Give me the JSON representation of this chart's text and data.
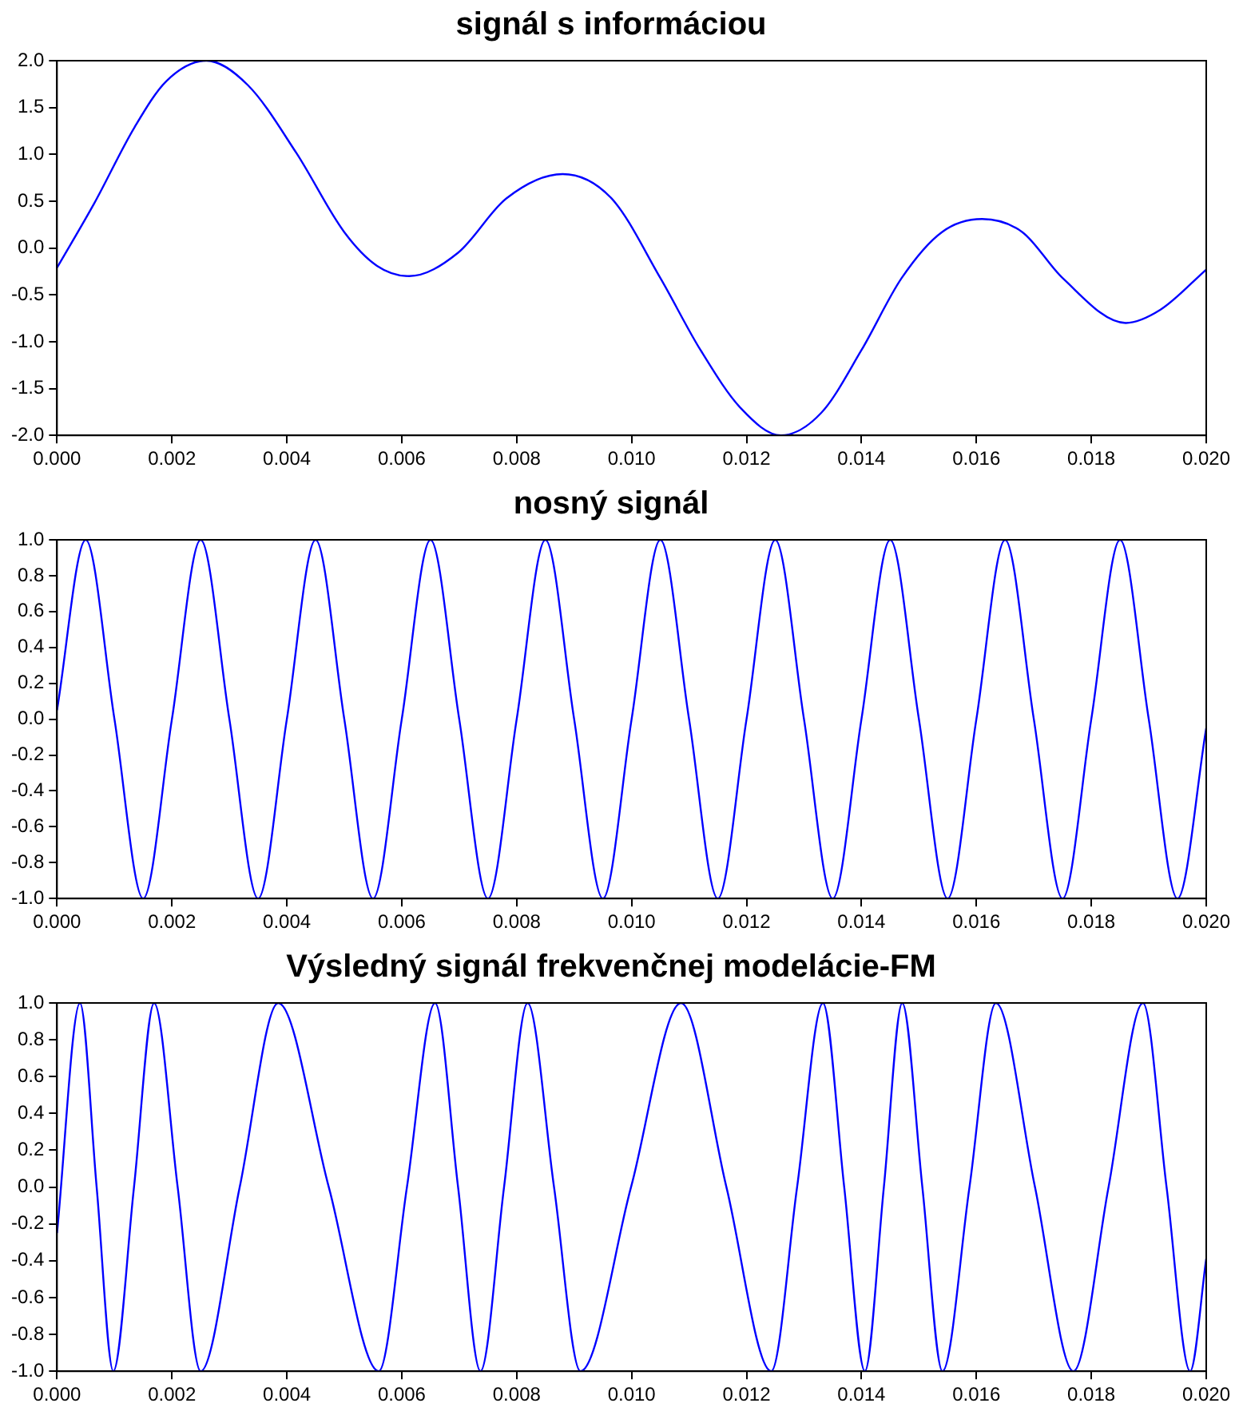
{
  "chart_data": [
    {
      "type": "line",
      "title": "signál s informáciou",
      "color": "#0000ff",
      "marker": "none",
      "grid": false,
      "x": [
        0,
        0.00065,
        0.00135,
        0.0019,
        0.0026,
        0.00332,
        0.00416,
        0.005,
        0.00557,
        0.00613,
        0.00698,
        0.00782,
        0.0088,
        0.00965,
        0.0105,
        0.0112,
        0.0119,
        0.0126,
        0.0133,
        0.014,
        0.0147,
        0.0154,
        0.0161,
        0.0168,
        0.0175,
        0.0186,
        0.0192,
        0.02
      ],
      "values": [
        -0.21,
        0.48,
        1.29,
        1.78,
        2.0,
        1.74,
        1.02,
        0.17,
        -0.19,
        -0.3,
        -0.05,
        0.53,
        0.79,
        0.53,
        -0.32,
        -1.09,
        -1.71,
        -2.0,
        -1.76,
        -1.09,
        -0.32,
        0.17,
        0.31,
        0.17,
        -0.32,
        -0.8,
        -0.66,
        -0.23
      ],
      "xlim": [
        0,
        0.02
      ],
      "ylim": [
        -2,
        2
      ],
      "xticks": [
        {
          "value": 0,
          "label": "0.000"
        },
        {
          "value": 0.002,
          "label": "0.002"
        },
        {
          "value": 0.004,
          "label": "0.004"
        },
        {
          "value": 0.006,
          "label": "0.006"
        },
        {
          "value": 0.008,
          "label": "0.008"
        },
        {
          "value": 0.01,
          "label": "0.010"
        },
        {
          "value": 0.012,
          "label": "0.012"
        },
        {
          "value": 0.014,
          "label": "0.014"
        },
        {
          "value": 0.016,
          "label": "0.016"
        },
        {
          "value": 0.018,
          "label": "0.018"
        },
        {
          "value": 0.02,
          "label": "0.020"
        }
      ],
      "yticks": [
        {
          "value": -2,
          "label": "-2.0"
        },
        -1.5,
        {
          "value": -1,
          "label": "-1.0"
        },
        -0.5,
        {
          "value": 0,
          "label": "0.0"
        },
        0.5,
        {
          "value": 1,
          "label": "1.0"
        },
        1.5,
        {
          "value": 2,
          "label": "2.0"
        }
      ]
    },
    {
      "type": "line",
      "title": "nosný signál",
      "color": "#0000ff",
      "marker": "none",
      "grid": false,
      "x": [
        0,
        0.0005,
        0.001,
        0.0015,
        0.002,
        0.0025,
        0.003,
        0.0035,
        0.004,
        0.0045,
        0.005,
        0.0055,
        0.006,
        0.0065,
        0.007,
        0.0075,
        0.008,
        0.0085,
        0.009,
        0.0095,
        0.01,
        0.0105,
        0.011,
        0.0115,
        0.012,
        0.0125,
        0.013,
        0.0135,
        0.014,
        0.0145,
        0.015,
        0.0155,
        0.016,
        0.0165,
        0.017,
        0.0175,
        0.018,
        0.0185,
        0.019,
        0.0195,
        0.02
      ],
      "values": [
        0.05,
        1,
        0,
        -1,
        0,
        1,
        0,
        -1,
        0,
        1,
        0,
        -1,
        0,
        1,
        0,
        -1,
        0,
        1,
        0,
        -1,
        0,
        1,
        0,
        -1,
        0,
        1,
        0,
        -1,
        0,
        1,
        0,
        -1,
        0,
        1,
        0,
        -1,
        0,
        1,
        0,
        -1,
        -0.05
      ],
      "xlim": [
        0,
        0.02
      ],
      "ylim": [
        -1,
        1
      ],
      "xticks": [
        {
          "value": 0,
          "label": "0.000"
        },
        {
          "value": 0.002,
          "label": "0.002"
        },
        {
          "value": 0.004,
          "label": "0.004"
        },
        {
          "value": 0.006,
          "label": "0.006"
        },
        {
          "value": 0.008,
          "label": "0.008"
        },
        {
          "value": 0.01,
          "label": "0.010"
        },
        {
          "value": 0.012,
          "label": "0.012"
        },
        {
          "value": 0.014,
          "label": "0.014"
        },
        {
          "value": 0.016,
          "label": "0.016"
        },
        {
          "value": 0.018,
          "label": "0.018"
        },
        {
          "value": 0.02,
          "label": "0.020"
        }
      ],
      "yticks": [
        {
          "value": -1,
          "label": "-1.0"
        },
        -0.8,
        -0.6,
        -0.4,
        -0.2,
        {
          "value": 0,
          "label": "0.0"
        },
        0.2,
        0.4,
        0.6,
        0.8,
        {
          "value": 1,
          "label": "1.0"
        }
      ]
    },
    {
      "type": "line",
      "title": "Výsledný signál frekvenčnej modelácie-FM",
      "color": "#0000ff",
      "marker": "none",
      "grid": false,
      "x": [
        0,
        0.0004,
        0.00069,
        0.00098,
        0.00134,
        0.00169,
        0.0021,
        0.0025,
        0.00318,
        0.00385,
        0.00473,
        0.0056,
        0.00609,
        0.00658,
        0.00698,
        0.00737,
        0.00778,
        0.00819,
        0.00865,
        0.00911,
        0.00999,
        0.01086,
        0.01165,
        0.01243,
        0.01288,
        0.01333,
        0.0137,
        0.01406,
        0.01439,
        0.01471,
        0.01506,
        0.01541,
        0.01588,
        0.01634,
        0.01702,
        0.01769,
        0.0183,
        0.0189,
        0.01931,
        0.01972,
        0.02
      ],
      "values": [
        -0.25,
        1,
        0,
        -1,
        0,
        1,
        0,
        -1,
        0,
        1,
        0,
        -1,
        0,
        1,
        0,
        -1,
        0,
        1,
        0,
        -1,
        0,
        1,
        0,
        -1,
        0,
        1,
        0,
        -1,
        0,
        1,
        0,
        -1,
        0,
        1,
        0,
        -1,
        0,
        1,
        0,
        -1,
        -0.39
      ],
      "xlim": [
        0,
        0.02
      ],
      "ylim": [
        -1,
        1
      ],
      "xticks": [
        {
          "value": 0,
          "label": "0.000"
        },
        {
          "value": 0.002,
          "label": "0.002"
        },
        {
          "value": 0.004,
          "label": "0.004"
        },
        {
          "value": 0.006,
          "label": "0.006"
        },
        {
          "value": 0.008,
          "label": "0.008"
        },
        {
          "value": 0.01,
          "label": "0.010"
        },
        {
          "value": 0.012,
          "label": "0.012"
        },
        {
          "value": 0.014,
          "label": "0.014"
        },
        {
          "value": 0.016,
          "label": "0.016"
        },
        {
          "value": 0.018,
          "label": "0.018"
        },
        {
          "value": 0.02,
          "label": "0.020"
        }
      ],
      "yticks": [
        {
          "value": -1,
          "label": "-1.0"
        },
        -0.8,
        -0.6,
        -0.4,
        -0.2,
        {
          "value": 0,
          "label": "0.0"
        },
        0.2,
        0.4,
        0.6,
        0.8,
        {
          "value": 1,
          "label": "1.0"
        }
      ]
    }
  ]
}
